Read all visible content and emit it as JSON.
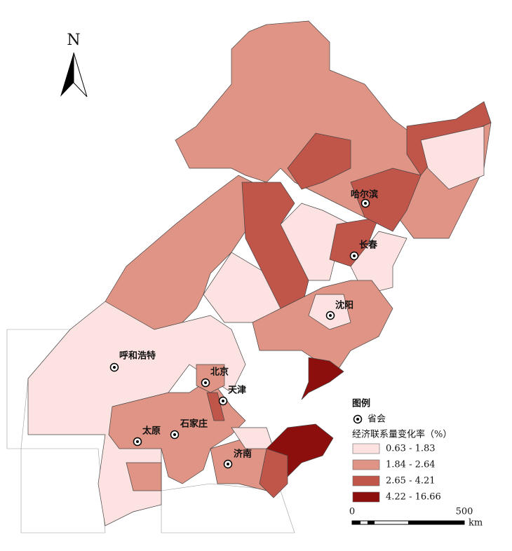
{
  "north_arrow": "N",
  "capitals": [
    {
      "name": "哈尔滨"
    },
    {
      "name": "长春"
    },
    {
      "name": "沈阳"
    },
    {
      "name": "呼和浩特"
    },
    {
      "name": "北京"
    },
    {
      "name": "天津"
    },
    {
      "name": "太原"
    },
    {
      "name": "石家庄"
    },
    {
      "name": "济南"
    }
  ],
  "legend": {
    "title": "图例",
    "capital_label": "省会",
    "variable": "经济联系量变化率（%）",
    "classes": [
      {
        "label": "0.63 - 1.83",
        "color": "#fce3e1"
      },
      {
        "label": "1.84 - 2.64",
        "color": "#df9485"
      },
      {
        "label": "2.65 - 4.21",
        "color": "#c0554a"
      },
      {
        "label": "4.22 - 16.66",
        "color": "#8c0f0e"
      }
    ]
  },
  "scale_bar": {
    "ticks": [
      0,
      500
    ],
    "unit": "km"
  }
}
